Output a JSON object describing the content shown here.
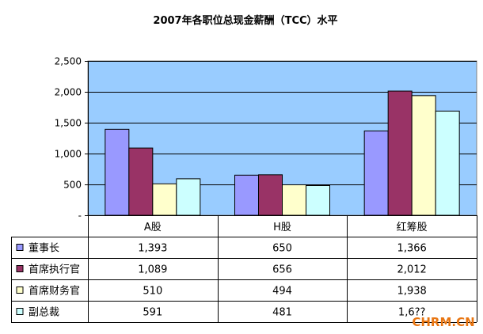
{
  "chart_data": {
    "type": "bar",
    "title": "2007年各职位总现金薪酬（TCC）水平",
    "categories": [
      "A股",
      "H股",
      "红筹股"
    ],
    "series": [
      {
        "name": "董事长",
        "values": [
          1393,
          650,
          1366
        ],
        "labels": [
          "1,393",
          "650",
          "1,366"
        ],
        "color": "#9999ff"
      },
      {
        "name": "首席执行官",
        "values": [
          1089,
          656,
          2012
        ],
        "labels": [
          "1,089",
          "656",
          "2,012"
        ],
        "color": "#993366"
      },
      {
        "name": "首席财务官",
        "values": [
          510,
          494,
          1938
        ],
        "labels": [
          "510",
          "494",
          "1,938"
        ],
        "color": "#ffffcc"
      },
      {
        "name": "副总裁",
        "values": [
          591,
          481,
          1688
        ],
        "labels": [
          "591",
          "481",
          "1,6??"
        ],
        "color": "#ccffff"
      }
    ],
    "ylim": [
      0,
      2500
    ],
    "yticks": [
      0,
      500,
      1000,
      1500,
      2000,
      2500
    ],
    "ytick_labels": [
      "-",
      "500",
      "1,000",
      "1,500",
      "2,000",
      "2,500"
    ],
    "plot_background": "#99ccff",
    "legend": "data-table"
  },
  "watermark": "CHRM.CN"
}
